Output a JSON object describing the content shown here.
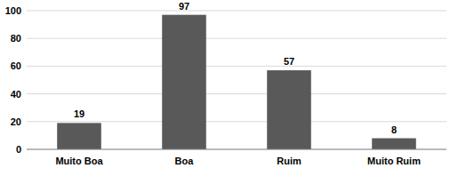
{
  "chart_data": {
    "type": "bar",
    "categories": [
      "Muito Boa",
      "Boa",
      "Ruim",
      "Muito Ruim"
    ],
    "values": [
      19,
      97,
      57,
      8
    ],
    "color": "#595959",
    "ylim": [
      0,
      100
    ],
    "yticks": [
      0,
      20,
      40,
      60,
      80,
      100
    ],
    "grid": true,
    "data_labels": true
  }
}
